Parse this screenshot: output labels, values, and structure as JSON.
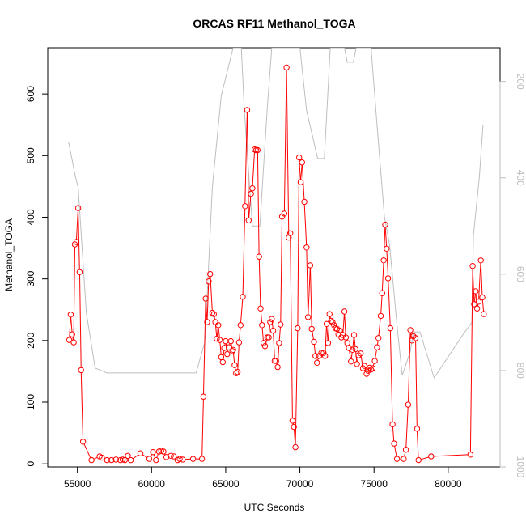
{
  "chart_data": {
    "type": "line",
    "title": "ORCAS RF11 Methanol_TOGA",
    "xlabel": "UTC Seconds",
    "ylabel": "Methanol_TOGA",
    "xlim": [
      53000,
      83500
    ],
    "ylim": [
      -5,
      675
    ],
    "x_ticks": [
      55000,
      60000,
      65000,
      70000,
      75000,
      80000
    ],
    "y_ticks": [
      0,
      100,
      200,
      300,
      400,
      500,
      600
    ],
    "y2_ticks": [
      200,
      400,
      600,
      800,
      1000
    ],
    "y2_lim": [
      1000,
      130
    ],
    "y2_reversed": true,
    "grid": false,
    "colors": {
      "series": "#ff0000",
      "secondary": "#bebebe",
      "axis": "#000000"
    },
    "series": [
      {
        "marker": "open-circle",
        "color": "#ff0000",
        "points": [
          [
            54450,
            201
          ],
          [
            54550,
            242
          ],
          [
            54650,
            210
          ],
          [
            54750,
            197
          ],
          [
            54830,
            356
          ],
          [
            54930,
            360
          ],
          [
            55050,
            415
          ],
          [
            55150,
            311
          ],
          [
            55250,
            152
          ],
          [
            55380,
            36
          ],
          [
            55950,
            6
          ],
          [
            56500,
            12
          ],
          [
            56650,
            10
          ],
          [
            57000,
            6
          ],
          [
            57300,
            6
          ],
          [
            57600,
            7
          ],
          [
            57900,
            6
          ],
          [
            58050,
            7
          ],
          [
            58200,
            6
          ],
          [
            58400,
            13
          ],
          [
            58600,
            6
          ],
          [
            59250,
            17
          ],
          [
            59850,
            8
          ],
          [
            60100,
            19
          ],
          [
            60300,
            6
          ],
          [
            60500,
            20
          ],
          [
            60650,
            21
          ],
          [
            60800,
            20
          ],
          [
            61000,
            11
          ],
          [
            61300,
            13
          ],
          [
            61500,
            12
          ],
          [
            61750,
            6
          ],
          [
            61900,
            8
          ],
          [
            62100,
            7
          ],
          [
            62800,
            8
          ],
          [
            63400,
            8
          ],
          [
            63500,
            109
          ],
          [
            63650,
            268
          ],
          [
            63750,
            230
          ],
          [
            63850,
            296
          ],
          [
            63950,
            308
          ],
          [
            64100,
            245
          ],
          [
            64200,
            243
          ],
          [
            64300,
            230
          ],
          [
            64400,
            203
          ],
          [
            64500,
            225
          ],
          [
            64600,
            201
          ],
          [
            64700,
            173
          ],
          [
            64800,
            165
          ],
          [
            64900,
            188
          ],
          [
            65000,
            199
          ],
          [
            65100,
            178
          ],
          [
            65200,
            189
          ],
          [
            65350,
            199
          ],
          [
            65450,
            183
          ],
          [
            65500,
            185
          ],
          [
            65600,
            160
          ],
          [
            65700,
            147
          ],
          [
            65800,
            149
          ],
          [
            65900,
            197
          ],
          [
            66000,
            225
          ],
          [
            66150,
            271
          ],
          [
            66300,
            418
          ],
          [
            66450,
            574
          ],
          [
            66550,
            395
          ],
          [
            66700,
            438
          ],
          [
            66800,
            447
          ],
          [
            66950,
            510
          ],
          [
            67050,
            509
          ],
          [
            67150,
            509
          ],
          [
            67250,
            336
          ],
          [
            67350,
            252
          ],
          [
            67450,
            225
          ],
          [
            67550,
            196
          ],
          [
            67650,
            191
          ],
          [
            67800,
            205
          ],
          [
            67900,
            205
          ],
          [
            68000,
            230
          ],
          [
            68100,
            235
          ],
          [
            68200,
            216
          ],
          [
            68300,
            167
          ],
          [
            68400,
            167
          ],
          [
            68500,
            157
          ],
          [
            68600,
            196
          ],
          [
            68700,
            226
          ],
          [
            68800,
            401
          ],
          [
            68950,
            406
          ],
          [
            69100,
            643
          ],
          [
            69250,
            367
          ],
          [
            69350,
            374
          ],
          [
            69500,
            70
          ],
          [
            69600,
            60
          ],
          [
            69700,
            27
          ],
          [
            69850,
            220
          ],
          [
            69950,
            497
          ],
          [
            70050,
            457
          ],
          [
            70150,
            489
          ],
          [
            70300,
            425
          ],
          [
            70450,
            351
          ],
          [
            70550,
            238
          ],
          [
            70700,
            322
          ],
          [
            70800,
            219
          ],
          [
            70950,
            198
          ],
          [
            71050,
            175
          ],
          [
            71150,
            164
          ],
          [
            71300,
            175
          ],
          [
            71450,
            180
          ],
          [
            71600,
            180
          ],
          [
            71700,
            175
          ],
          [
            71800,
            227
          ],
          [
            71900,
            196
          ],
          [
            72000,
            243
          ],
          [
            72100,
            232
          ],
          [
            72200,
            230
          ],
          [
            72300,
            225
          ],
          [
            72400,
            220
          ],
          [
            72500,
            219
          ],
          [
            72600,
            210
          ],
          [
            72700,
            216
          ],
          [
            72800,
            205
          ],
          [
            72900,
            209
          ],
          [
            73000,
            247
          ],
          [
            73100,
            205
          ],
          [
            73200,
            196
          ],
          [
            73300,
            188
          ],
          [
            73450,
            166
          ],
          [
            73550,
            185
          ],
          [
            73650,
            209
          ],
          [
            73750,
            186
          ],
          [
            73850,
            162
          ],
          [
            73950,
            176
          ],
          [
            74100,
            179
          ],
          [
            74250,
            155
          ],
          [
            74350,
            159
          ],
          [
            74500,
            146
          ],
          [
            74600,
            151
          ],
          [
            74700,
            156
          ],
          [
            74800,
            153
          ],
          [
            74900,
            155
          ],
          [
            75050,
            167
          ],
          [
            75200,
            189
          ],
          [
            75300,
            204
          ],
          [
            75450,
            240
          ],
          [
            75550,
            277
          ],
          [
            75650,
            330
          ],
          [
            75750,
            388
          ],
          [
            75850,
            349
          ],
          [
            75950,
            301
          ],
          [
            76100,
            220
          ],
          [
            76250,
            64
          ],
          [
            76350,
            33
          ],
          [
            76550,
            8
          ],
          [
            77000,
            8
          ],
          [
            77150,
            23
          ],
          [
            77300,
            96
          ],
          [
            77450,
            217
          ],
          [
            77550,
            200
          ],
          [
            77650,
            207
          ],
          [
            77800,
            204
          ],
          [
            77900,
            57
          ],
          [
            78000,
            6
          ],
          [
            78850,
            12
          ],
          [
            81500,
            15
          ],
          [
            81650,
            321
          ],
          [
            81750,
            259
          ],
          [
            81850,
            280
          ],
          [
            81950,
            252
          ],
          [
            82050,
            263
          ],
          [
            82200,
            330
          ],
          [
            82300,
            270
          ],
          [
            82400,
            243
          ]
        ]
      },
      {
        "color": "#bebebe",
        "axis": "right",
        "points": [
          [
            54400,
            325
          ],
          [
            54850,
            395
          ],
          [
            55050,
            420
          ],
          [
            55600,
            680
          ],
          [
            56200,
            795
          ],
          [
            57000,
            805
          ],
          [
            60000,
            805
          ],
          [
            62000,
            805
          ],
          [
            63000,
            805
          ],
          [
            63600,
            740
          ],
          [
            64100,
            420
          ],
          [
            64700,
            230
          ],
          [
            65500,
            130
          ],
          [
            66050,
            130
          ],
          [
            66250,
            255
          ],
          [
            66800,
            500
          ],
          [
            67300,
            500
          ],
          [
            67800,
            255
          ],
          [
            68100,
            130
          ],
          [
            69000,
            130
          ],
          [
            70000,
            130
          ],
          [
            70450,
            260
          ],
          [
            71200,
            360
          ],
          [
            71650,
            360
          ],
          [
            72050,
            130
          ],
          [
            73000,
            130
          ],
          [
            73200,
            160
          ],
          [
            73600,
            160
          ],
          [
            73800,
            130
          ],
          [
            74800,
            130
          ],
          [
            75200,
            290
          ],
          [
            75700,
            480
          ],
          [
            76050,
            540
          ],
          [
            76500,
            690
          ],
          [
            76900,
            810
          ],
          [
            77450,
            760
          ],
          [
            77650,
            720
          ],
          [
            78100,
            720
          ],
          [
            78700,
            780
          ],
          [
            79050,
            815
          ],
          [
            79600,
            790
          ],
          [
            81000,
            725
          ],
          [
            81600,
            700
          ],
          [
            81700,
            520
          ],
          [
            82100,
            400
          ],
          [
            82350,
            290
          ]
        ]
      }
    ]
  }
}
